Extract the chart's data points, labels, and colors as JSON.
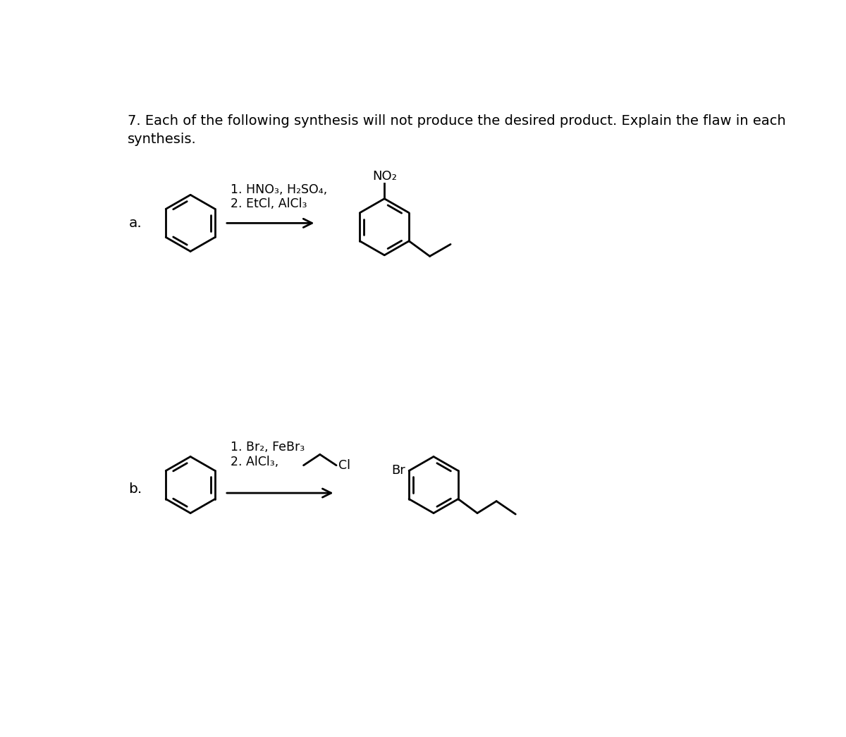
{
  "title_text": "7. Each of the following synthesis will not produce the desired product. Explain the flaw in each\nsynthesis.",
  "title_fontsize": 14.0,
  "background_color": "#ffffff",
  "text_color": "#000000",
  "label_a": "a.",
  "label_b": "b.",
  "reaction_a_cond_line1": "1. HNO₃, H₂SO₄,",
  "reaction_a_cond_line2": "2. EtCl, AlCl₃",
  "reaction_b_cond_line1": "1. Br₂, FeBr₃",
  "reaction_b_cond_line2": "2. AlCl₃,",
  "reaction_b_cl_label": "Cl",
  "product_a_no2": "NO₂",
  "product_b_br": "Br",
  "cond_fontsize": 12.5,
  "label_fontsize": 14.5,
  "sub_fontsize": 11.0
}
